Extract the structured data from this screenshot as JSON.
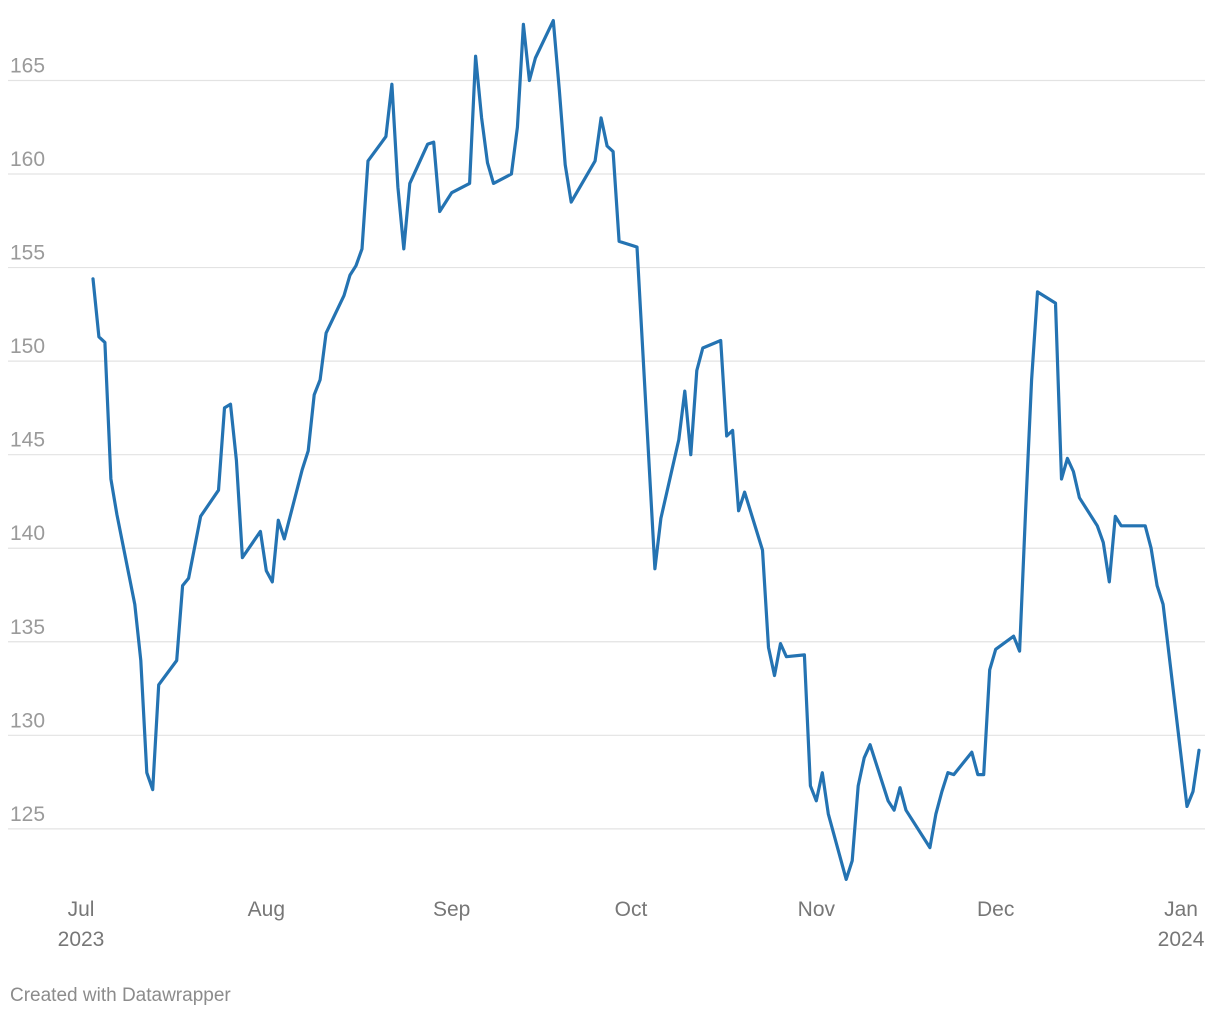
{
  "credit": "Created with Datawrapper",
  "chart_data": {
    "type": "line",
    "title": "",
    "xlabel": "",
    "ylabel": "",
    "grid": "horizontal",
    "line_color": "#2473b2",
    "ylim": [
      122,
      168.5
    ],
    "xlim": [
      "2023-07-01",
      "2024-01-02"
    ],
    "y_ticks": [
      125,
      130,
      135,
      140,
      145,
      150,
      155,
      160,
      165
    ],
    "x_ticks": [
      {
        "date": "2023-07-01",
        "label": "Jul",
        "sublabel": "2023"
      },
      {
        "date": "2023-08-01",
        "label": "Aug",
        "sublabel": ""
      },
      {
        "date": "2023-09-01",
        "label": "Sep",
        "sublabel": ""
      },
      {
        "date": "2023-10-01",
        "label": "Oct",
        "sublabel": ""
      },
      {
        "date": "2023-11-01",
        "label": "Nov",
        "sublabel": ""
      },
      {
        "date": "2023-12-01",
        "label": "Dec",
        "sublabel": ""
      },
      {
        "date": "2024-01-01",
        "label": "Jan",
        "sublabel": "2024"
      }
    ],
    "series": [
      {
        "points": [
          [
            "2023-07-03",
            154.4
          ],
          [
            "2023-07-04",
            151.3
          ],
          [
            "2023-07-05",
            151.0
          ],
          [
            "2023-07-06",
            143.7
          ],
          [
            "2023-07-07",
            141.8
          ],
          [
            "2023-07-10",
            137.0
          ],
          [
            "2023-07-11",
            134.0
          ],
          [
            "2023-07-12",
            128.0
          ],
          [
            "2023-07-13",
            127.1
          ],
          [
            "2023-07-14",
            132.7
          ],
          [
            "2023-07-17",
            134.0
          ],
          [
            "2023-07-18",
            138.0
          ],
          [
            "2023-07-19",
            138.4
          ],
          [
            "2023-07-21",
            141.7
          ],
          [
            "2023-07-24",
            143.1
          ],
          [
            "2023-07-25",
            147.5
          ],
          [
            "2023-07-26",
            147.7
          ],
          [
            "2023-07-27",
            144.7
          ],
          [
            "2023-07-28",
            139.5
          ],
          [
            "2023-07-31",
            140.9
          ],
          [
            "2023-08-01",
            138.8
          ],
          [
            "2023-08-02",
            138.2
          ],
          [
            "2023-08-03",
            141.5
          ],
          [
            "2023-08-04",
            140.5
          ],
          [
            "2023-08-07",
            144.2
          ],
          [
            "2023-08-08",
            145.2
          ],
          [
            "2023-08-09",
            148.2
          ],
          [
            "2023-08-10",
            149.0
          ],
          [
            "2023-08-11",
            151.5
          ],
          [
            "2023-08-14",
            153.5
          ],
          [
            "2023-08-15",
            154.6
          ],
          [
            "2023-08-16",
            155.1
          ],
          [
            "2023-08-17",
            156.0
          ],
          [
            "2023-08-18",
            160.7
          ],
          [
            "2023-08-21",
            162.0
          ],
          [
            "2023-08-22",
            164.8
          ],
          [
            "2023-08-23",
            159.3
          ],
          [
            "2023-08-24",
            156.0
          ],
          [
            "2023-08-25",
            159.5
          ],
          [
            "2023-08-28",
            161.6
          ],
          [
            "2023-08-29",
            161.7
          ],
          [
            "2023-08-30",
            158.0
          ],
          [
            "2023-08-31",
            158.5
          ],
          [
            "2023-09-01",
            159.0
          ],
          [
            "2023-09-04",
            159.5
          ],
          [
            "2023-09-05",
            166.3
          ],
          [
            "2023-09-06",
            163.0
          ],
          [
            "2023-09-07",
            160.6
          ],
          [
            "2023-09-08",
            159.5
          ],
          [
            "2023-09-11",
            160.0
          ],
          [
            "2023-09-12",
            162.5
          ],
          [
            "2023-09-13",
            168.0
          ],
          [
            "2023-09-14",
            165.0
          ],
          [
            "2023-09-15",
            166.2
          ],
          [
            "2023-09-18",
            168.2
          ],
          [
            "2023-09-19",
            164.5
          ],
          [
            "2023-09-20",
            160.5
          ],
          [
            "2023-09-21",
            158.5
          ],
          [
            "2023-09-25",
            160.7
          ],
          [
            "2023-09-26",
            163.0
          ],
          [
            "2023-09-27",
            161.5
          ],
          [
            "2023-09-28",
            161.2
          ],
          [
            "2023-09-29",
            156.4
          ],
          [
            "2023-10-02",
            156.1
          ],
          [
            "2023-10-05",
            138.9
          ],
          [
            "2023-10-06",
            141.6
          ],
          [
            "2023-10-09",
            145.8
          ],
          [
            "2023-10-10",
            148.4
          ],
          [
            "2023-10-11",
            145.0
          ],
          [
            "2023-10-12",
            149.5
          ],
          [
            "2023-10-13",
            150.7
          ],
          [
            "2023-10-16",
            151.1
          ],
          [
            "2023-10-17",
            146.0
          ],
          [
            "2023-10-18",
            146.3
          ],
          [
            "2023-10-19",
            142.0
          ],
          [
            "2023-10-20",
            143.0
          ],
          [
            "2023-10-23",
            139.9
          ],
          [
            "2023-10-24",
            134.7
          ],
          [
            "2023-10-25",
            133.2
          ],
          [
            "2023-10-26",
            134.9
          ],
          [
            "2023-10-27",
            134.2
          ],
          [
            "2023-10-30",
            134.3
          ],
          [
            "2023-10-31",
            127.3
          ],
          [
            "2023-11-01",
            126.5
          ],
          [
            "2023-11-02",
            128.0
          ],
          [
            "2023-11-03",
            125.8
          ],
          [
            "2023-11-06",
            122.3
          ],
          [
            "2023-11-07",
            123.3
          ],
          [
            "2023-11-08",
            127.3
          ],
          [
            "2023-11-09",
            128.8
          ],
          [
            "2023-11-10",
            129.5
          ],
          [
            "2023-11-13",
            126.5
          ],
          [
            "2023-11-14",
            126.0
          ],
          [
            "2023-11-15",
            127.2
          ],
          [
            "2023-11-16",
            126.0
          ],
          [
            "2023-11-20",
            124.0
          ],
          [
            "2023-11-21",
            125.8
          ],
          [
            "2023-11-22",
            127.0
          ],
          [
            "2023-11-23",
            128.0
          ],
          [
            "2023-11-24",
            127.9
          ],
          [
            "2023-11-27",
            129.1
          ],
          [
            "2023-11-28",
            127.9
          ],
          [
            "2023-11-29",
            127.9
          ],
          [
            "2023-11-30",
            133.5
          ],
          [
            "2023-12-01",
            134.6
          ],
          [
            "2023-12-04",
            135.3
          ],
          [
            "2023-12-05",
            134.5
          ],
          [
            "2023-12-06",
            142.0
          ],
          [
            "2023-12-07",
            149.0
          ],
          [
            "2023-12-08",
            153.7
          ],
          [
            "2023-12-11",
            153.1
          ],
          [
            "2023-12-12",
            143.7
          ],
          [
            "2023-12-13",
            144.8
          ],
          [
            "2023-12-14",
            144.1
          ],
          [
            "2023-12-15",
            142.7
          ],
          [
            "2023-12-18",
            141.2
          ],
          [
            "2023-12-19",
            140.3
          ],
          [
            "2023-12-20",
            138.2
          ],
          [
            "2023-12-21",
            141.7
          ],
          [
            "2023-12-22",
            141.2
          ],
          [
            "2023-12-26",
            141.2
          ],
          [
            "2023-12-27",
            140.0
          ],
          [
            "2023-12-28",
            138.0
          ],
          [
            "2023-12-29",
            137.0
          ],
          [
            "2024-01-02",
            126.2
          ],
          [
            "2024-01-03",
            127.0
          ],
          [
            "2024-01-04",
            129.2
          ]
        ]
      }
    ]
  }
}
